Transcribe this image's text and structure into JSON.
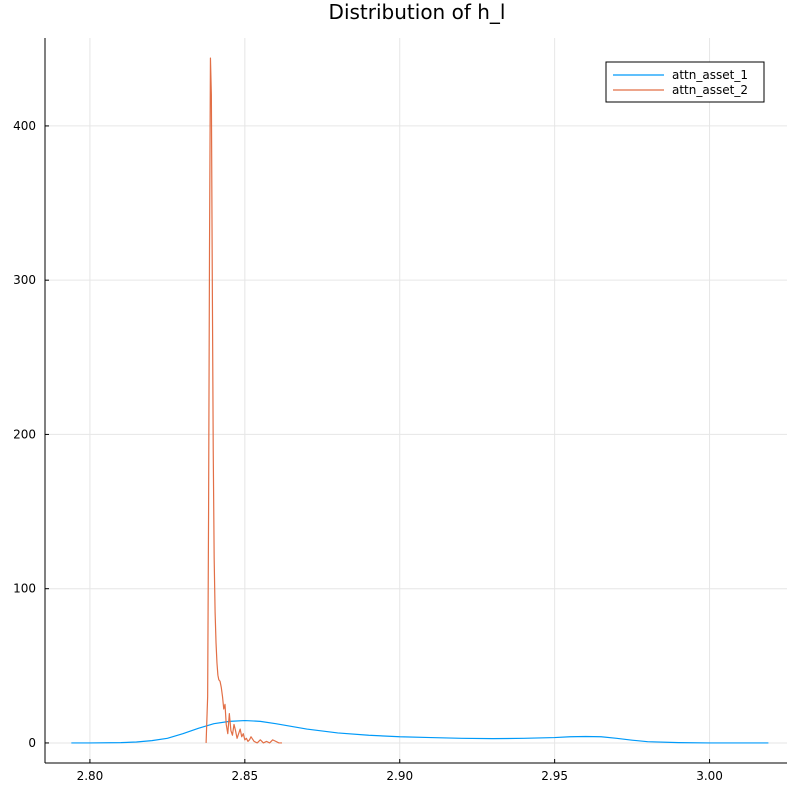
{
  "chart_data": {
    "type": "line",
    "title": "Distribution of h_l",
    "xlabel": "",
    "ylabel": "",
    "xlim": [
      2.7855,
      3.025
    ],
    "ylim": [
      -13,
      457
    ],
    "xticks": [
      2.8,
      2.85,
      2.9,
      2.95,
      3.0
    ],
    "xtick_labels": [
      "2.80",
      "2.85",
      "2.90",
      "2.95",
      "3.00"
    ],
    "yticks": [
      0,
      100,
      200,
      300,
      400
    ],
    "ytick_labels": [
      "0",
      "100",
      "200",
      "300",
      "400"
    ],
    "grid": true,
    "legend_position": "top-right",
    "series": [
      {
        "name": "attn_asset_1",
        "color": "#009af9",
        "x": [
          2.794,
          2.8,
          2.81,
          2.815,
          2.82,
          2.825,
          2.83,
          2.835,
          2.84,
          2.845,
          2.85,
          2.855,
          2.86,
          2.87,
          2.88,
          2.89,
          2.9,
          2.91,
          2.92,
          2.93,
          2.94,
          2.95,
          2.955,
          2.96,
          2.965,
          2.97,
          2.975,
          2.98,
          2.99,
          3.0,
          3.01,
          3.019
        ],
        "y": [
          0,
          0,
          0.2,
          0.6,
          1.5,
          3,
          6,
          9.5,
          12.5,
          14,
          14.5,
          14,
          12.5,
          9,
          6.5,
          5,
          4,
          3.5,
          3,
          2.8,
          3,
          3.5,
          4,
          4.2,
          4,
          3,
          1.8,
          0.8,
          0.2,
          0,
          0,
          0
        ]
      },
      {
        "name": "attn_asset_2",
        "color": "#e26f46",
        "x": [
          2.8375,
          2.838,
          2.8383,
          2.8386,
          2.8389,
          2.8392,
          2.8395,
          2.8398,
          2.8401,
          2.8404,
          2.8407,
          2.841,
          2.8413,
          2.8416,
          2.842,
          2.8424,
          2.8428,
          2.8432,
          2.8436,
          2.844,
          2.8445,
          2.845,
          2.8455,
          2.846,
          2.8465,
          2.847,
          2.8475,
          2.848,
          2.8485,
          2.849,
          2.8495,
          2.85,
          2.8505,
          2.851,
          2.8515,
          2.852,
          2.853,
          2.854,
          2.855,
          2.856,
          2.857,
          2.858,
          2.859,
          2.86,
          2.861,
          2.862
        ],
        "y": [
          0,
          30,
          150,
          320,
          444,
          420,
          300,
          190,
          120,
          85,
          65,
          52,
          44,
          41,
          40,
          36,
          30,
          22,
          25,
          12,
          6,
          19,
          8,
          5,
          12,
          8,
          3,
          6,
          9,
          4,
          6,
          2,
          3,
          1,
          2,
          4,
          1,
          0,
          2,
          0,
          1,
          0,
          2,
          1,
          0,
          0
        ]
      }
    ]
  }
}
